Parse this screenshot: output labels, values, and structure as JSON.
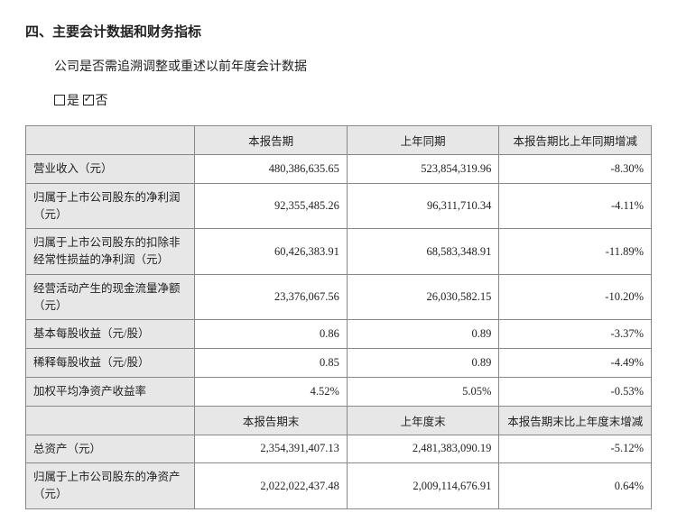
{
  "section_title": "四、主要会计数据和财务指标",
  "subtitle": "公司是否需追溯调整或重述以前年度会计数据",
  "checkbox_yes_label": "是",
  "checkbox_no_label": "否",
  "checkbox_yes_checked": false,
  "checkbox_no_checked": true,
  "colors": {
    "header_bg": "#e7e7e7",
    "border": "#888888",
    "text": "#222222",
    "page_bg": "#ffffff"
  },
  "table1": {
    "headers": [
      "",
      "本报告期",
      "上年同期",
      "本报告期比上年同期增减"
    ],
    "rows": [
      {
        "label": "营业收入（元）",
        "cur": "480,386,635.65",
        "prev": "523,854,319.96",
        "chg": "-8.30%"
      },
      {
        "label": "归属于上市公司股东的净利润（元）",
        "cur": "92,355,485.26",
        "prev": "96,311,710.34",
        "chg": "-4.11%"
      },
      {
        "label": "归属于上市公司股东的扣除非经常性损益的净利润（元）",
        "cur": "60,426,383.91",
        "prev": "68,583,348.91",
        "chg": "-11.89%"
      },
      {
        "label": "经营活动产生的现金流量净额（元）",
        "cur": "23,376,067.56",
        "prev": "26,030,582.15",
        "chg": "-10.20%"
      },
      {
        "label": "基本每股收益（元/股）",
        "cur": "0.86",
        "prev": "0.89",
        "chg": "-3.37%"
      },
      {
        "label": "稀释每股收益（元/股）",
        "cur": "0.85",
        "prev": "0.89",
        "chg": "-4.49%"
      },
      {
        "label": "加权平均净资产收益率",
        "cur": "4.52%",
        "prev": "5.05%",
        "chg": "-0.53%"
      }
    ]
  },
  "table2": {
    "headers": [
      "",
      "本报告期末",
      "上年度末",
      "本报告期末比上年度末增减"
    ],
    "rows": [
      {
        "label": "总资产（元）",
        "cur": "2,354,391,407.13",
        "prev": "2,481,383,090.19",
        "chg": "-5.12%"
      },
      {
        "label": "归属于上市公司股东的净资产（元）",
        "cur": "2,022,022,437.48",
        "prev": "2,009,114,676.91",
        "chg": "0.64%"
      }
    ]
  }
}
